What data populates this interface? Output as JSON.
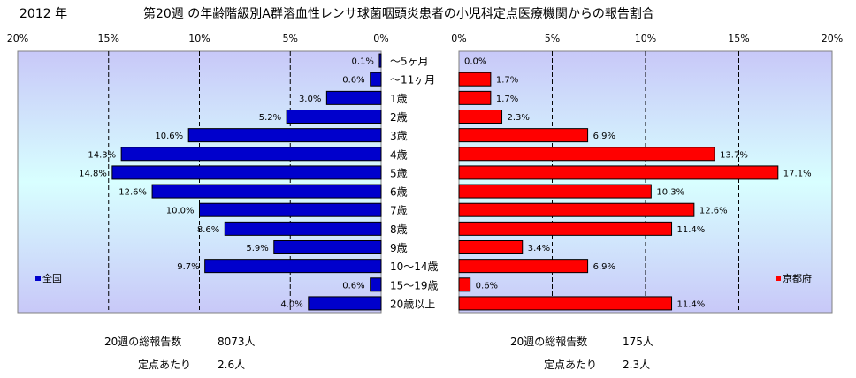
{
  "header": {
    "year": "2012 年",
    "title": "第20週 の年齢階級別A群溶血性レンサ球菌咽頭炎患者の小児科定点医療機関からの報告割合"
  },
  "chart_data": {
    "type": "bar",
    "orientation": "horizontal",
    "layout": "butterfly",
    "categories": [
      "～5ヶ月",
      "～11ヶ月",
      "1歳",
      "2歳",
      "3歳",
      "4歳",
      "5歳",
      "6歳",
      "7歳",
      "8歳",
      "9歳",
      "10～14歳",
      "15～19歳",
      "20歳以上"
    ],
    "xlim": [
      0,
      20
    ],
    "x_ticks": [
      "0%",
      "5%",
      "10%",
      "15%",
      "20%"
    ],
    "grid": true,
    "series": [
      {
        "name": "全国",
        "side": "left",
        "color": "#0000cc",
        "values": [
          0.1,
          0.6,
          3.0,
          5.2,
          10.6,
          14.3,
          14.8,
          12.6,
          10.0,
          8.6,
          5.9,
          9.7,
          0.6,
          4.0
        ],
        "labels": [
          "0.1%",
          "0.6%",
          "3.0%",
          "5.2%",
          "10.6%",
          "14.3%",
          "14.8%",
          "12.6%",
          "10.0%",
          "8.6%",
          "5.9%",
          "9.7%",
          "0.6%",
          "4.0%"
        ],
        "legend_position": "bottom-left"
      },
      {
        "name": "京都府",
        "side": "right",
        "color": "#ff0000",
        "values": [
          0.0,
          1.7,
          1.7,
          2.3,
          6.9,
          13.7,
          17.1,
          10.3,
          12.6,
          11.4,
          3.4,
          6.9,
          0.6,
          11.4
        ],
        "labels": [
          "0.0%",
          "1.7%",
          "1.7%",
          "2.3%",
          "6.9%",
          "13.7%",
          "17.1%",
          "10.3%",
          "12.6%",
          "11.4%",
          "3.4%",
          "6.9%",
          "0.6%",
          "11.4%"
        ],
        "legend_position": "bottom-right"
      }
    ]
  },
  "stats": {
    "national": {
      "total_label": "20週の総報告数",
      "total_value": "8073人",
      "per_site_label": "定点あたり",
      "per_site_value": "2.6人"
    },
    "kyoto": {
      "total_label": "20週の総報告数",
      "total_value": "175人",
      "per_site_label": "定点あたり",
      "per_site_value": "2.3人"
    }
  },
  "colors": {
    "plot_gradient_top": "#c8c8f8",
    "plot_gradient_mid": "#d8ffff",
    "plot_gradient_bottom": "#c8c8f8"
  }
}
